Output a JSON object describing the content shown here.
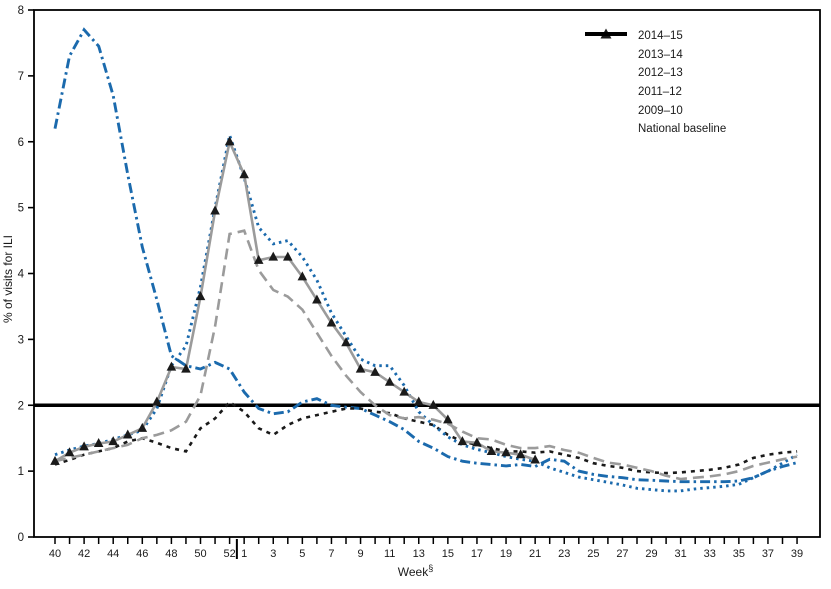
{
  "chart_data": {
    "type": "line",
    "title": "",
    "xlabel": "Week",
    "xlabel_superscript": "§",
    "ylabel": "% of visits for ILI",
    "ylim": [
      0,
      8
    ],
    "yticks": [
      0,
      1,
      2,
      3,
      4,
      5,
      6,
      7,
      8
    ],
    "grid": "off",
    "legend_position": "upper right",
    "x_axis_year_break_after": "52",
    "weeks": [
      "40",
      "41",
      "42",
      "43",
      "44",
      "45",
      "46",
      "47",
      "48",
      "49",
      "50",
      "51",
      "52",
      "1",
      "2",
      "3",
      "4",
      "5",
      "6",
      "7",
      "8",
      "9",
      "10",
      "11",
      "12",
      "13",
      "14",
      "15",
      "16",
      "17",
      "18",
      "19",
      "20",
      "21",
      "22",
      "23",
      "24",
      "25",
      "26",
      "27",
      "28",
      "29",
      "30",
      "31",
      "32",
      "33",
      "34",
      "35",
      "36",
      "37",
      "38",
      "39"
    ],
    "x_ticks_labeled": [
      "40",
      "42",
      "44",
      "46",
      "48",
      "50",
      "52",
      "1",
      "3",
      "5",
      "7",
      "9",
      "11",
      "13",
      "15",
      "17",
      "19",
      "21",
      "23",
      "25",
      "27",
      "29",
      "31",
      "33",
      "35",
      "37",
      "39"
    ],
    "baseline": {
      "label": "National baseline",
      "value": 2.0,
      "color": "#000000"
    },
    "colors": {
      "blue": "#1b6aad",
      "gray": "#9b9b9b",
      "black": "#1a1a1a"
    },
    "series": [
      {
        "name": "2014–15",
        "color": "#9b9b9b",
        "marker": "triangle",
        "marker_color": "#1a1a1a",
        "line_style": "solid",
        "values": [
          1.15,
          1.28,
          1.37,
          1.42,
          1.45,
          1.55,
          1.65,
          2.05,
          2.58,
          2.55,
          3.65,
          4.95,
          6.0,
          5.5,
          4.2,
          4.25,
          4.25,
          3.95,
          3.6,
          3.25,
          2.95,
          2.55,
          2.5,
          2.35,
          2.2,
          2.05,
          2.0,
          1.78,
          1.45,
          1.43,
          1.3,
          1.28,
          1.25,
          1.17,
          null,
          null,
          null,
          null,
          null,
          null,
          null,
          null,
          null,
          null,
          null,
          null,
          null,
          null,
          null,
          null,
          null,
          null
        ]
      },
      {
        "name": "2013–14",
        "color": "#9b9b9b",
        "marker": "none",
        "line_style": "dashed",
        "values": [
          1.15,
          1.2,
          1.25,
          1.3,
          1.35,
          1.4,
          1.5,
          1.55,
          1.62,
          1.75,
          2.15,
          3.2,
          4.6,
          4.65,
          4.05,
          3.75,
          3.65,
          3.45,
          3.1,
          2.75,
          2.45,
          2.2,
          2.0,
          1.85,
          1.8,
          1.82,
          1.78,
          1.72,
          1.6,
          1.5,
          1.48,
          1.4,
          1.35,
          1.35,
          1.38,
          1.32,
          1.28,
          1.2,
          1.13,
          1.1,
          1.05,
          1.0,
          0.93,
          0.88,
          0.9,
          0.92,
          0.95,
          1.0,
          1.08,
          1.13,
          1.18,
          1.22
        ]
      },
      {
        "name": "2012–13",
        "color": "#1b6aad",
        "marker": "none",
        "line_style": "dotted",
        "values": [
          1.25,
          1.32,
          1.38,
          1.42,
          1.48,
          1.55,
          1.62,
          1.95,
          2.6,
          2.9,
          3.8,
          5.0,
          6.1,
          5.45,
          4.7,
          4.45,
          4.5,
          4.25,
          3.9,
          3.4,
          3.05,
          2.7,
          2.6,
          2.6,
          2.3,
          1.9,
          1.7,
          1.52,
          1.4,
          1.33,
          1.28,
          1.22,
          1.18,
          1.15,
          1.05,
          0.98,
          0.91,
          0.87,
          0.83,
          0.79,
          0.74,
          0.72,
          0.7,
          0.7,
          0.73,
          0.75,
          0.77,
          0.8,
          0.9,
          1.0,
          1.12,
          1.25
        ]
      },
      {
        "name": "2011–12",
        "color": "#1a1a1a",
        "marker": "none",
        "line_style": "short-dash",
        "values": [
          1.1,
          1.17,
          1.25,
          1.3,
          1.35,
          1.45,
          1.5,
          1.43,
          1.35,
          1.3,
          1.65,
          1.8,
          2.05,
          1.9,
          1.65,
          1.55,
          1.7,
          1.8,
          1.85,
          1.9,
          1.95,
          1.95,
          1.9,
          1.88,
          1.8,
          1.75,
          1.7,
          1.55,
          1.45,
          1.4,
          1.35,
          1.3,
          1.3,
          1.28,
          1.3,
          1.25,
          1.2,
          1.12,
          1.08,
          1.05,
          1.0,
          0.98,
          0.97,
          0.98,
          1.0,
          1.02,
          1.05,
          1.1,
          1.2,
          1.25,
          1.28,
          1.3
        ]
      },
      {
        "name": "2009–10",
        "color": "#1b6aad",
        "marker": "none",
        "line_style": "dash-dot",
        "values": [
          6.2,
          7.3,
          7.7,
          7.45,
          6.7,
          5.5,
          4.4,
          3.6,
          2.75,
          2.6,
          2.55,
          2.65,
          2.55,
          2.2,
          1.95,
          1.87,
          1.9,
          2.05,
          2.1,
          2.0,
          1.97,
          1.95,
          1.85,
          1.75,
          1.63,
          1.45,
          1.35,
          1.22,
          1.15,
          1.12,
          1.1,
          1.08,
          1.1,
          1.07,
          1.18,
          1.15,
          1.0,
          0.95,
          0.92,
          0.9,
          0.87,
          0.86,
          0.85,
          0.84,
          0.84,
          0.84,
          0.84,
          0.85,
          0.9,
          1.0,
          1.07,
          1.13
        ]
      }
    ]
  }
}
